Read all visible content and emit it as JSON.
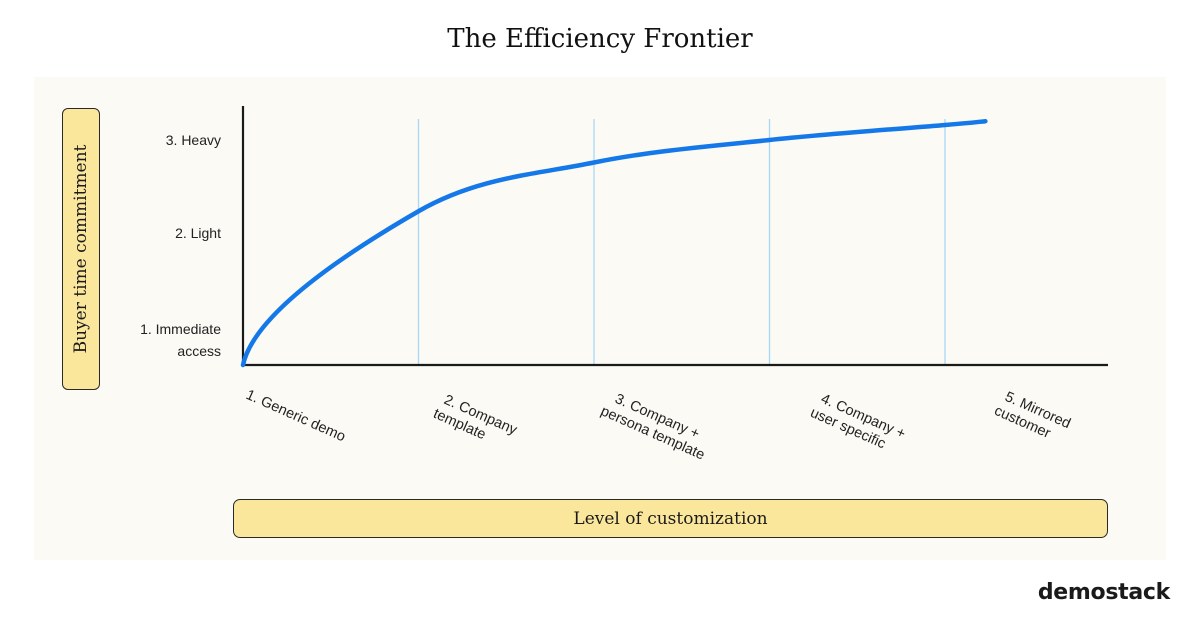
{
  "title": "The Efficiency Frontier",
  "logo": "demostack",
  "chart_data": {
    "type": "line",
    "title": "The Efficiency Frontier",
    "xlabel": "Level of customization",
    "ylabel": "Buyer time commitment",
    "categories": [
      "1. Generic demo",
      "2. Company template",
      "3. Company + persona template",
      "4. Company + user specific",
      "5. Mirrored customer"
    ],
    "x_tick_lines": [
      [
        "1. Generic demo"
      ],
      [
        "2. Company",
        "template"
      ],
      [
        "3. Company +",
        "persona template"
      ],
      [
        "4. Company +",
        "user specific"
      ],
      [
        "5. Mirrored",
        "customer"
      ]
    ],
    "y_levels": [
      {
        "value": 1,
        "lines": [
          "1. Immediate",
          "access"
        ]
      },
      {
        "value": 2,
        "lines": [
          "2. Light"
        ]
      },
      {
        "value": 3,
        "lines": [
          "3. Heavy"
        ]
      }
    ],
    "series": [
      {
        "x": [
          0,
          1,
          2,
          3,
          4,
          4.23
        ],
        "y": [
          0,
          2.05,
          2.7,
          3.0,
          3.2,
          3.25
        ],
        "color": "#1478e8"
      }
    ],
    "xlim": [
      0,
      4.6
    ],
    "ylim": [
      0,
      3.55
    ],
    "gridlines": "vertical",
    "grid_color": "#a9d8f5",
    "axis_color": "#1a1a1a"
  }
}
